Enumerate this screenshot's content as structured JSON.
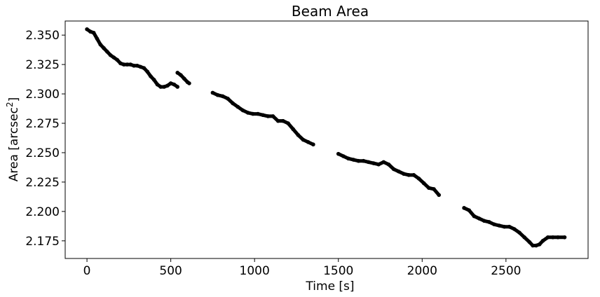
{
  "chart_data": {
    "type": "scatter",
    "title": "Beam Area",
    "xlabel": "Time [s]",
    "ylabel_prefix": "Area [arcsec",
    "ylabel_sup": "2",
    "ylabel_suffix": "]",
    "xlim": [
      -130,
      2990
    ],
    "ylim": [
      2.16,
      2.362
    ],
    "x_ticks": [
      0,
      500,
      1000,
      1500,
      2000,
      2500
    ],
    "x_tick_labels": [
      "0",
      "500",
      "1000",
      "1500",
      "2000",
      "2500"
    ],
    "y_ticks": [
      2.175,
      2.2,
      2.225,
      2.25,
      2.275,
      2.3,
      2.325,
      2.35
    ],
    "y_tick_labels": [
      "2.175",
      "2.200",
      "2.225",
      "2.250",
      "2.275",
      "2.300",
      "2.325",
      "2.350"
    ],
    "grid": false,
    "marker_color": "#000000",
    "segments": [
      {
        "x": [
          0,
          20,
          40,
          60,
          80,
          100,
          120,
          140,
          160,
          180,
          200,
          220,
          240,
          260,
          280,
          300,
          320,
          340,
          360,
          380,
          400,
          420,
          440,
          460,
          480,
          500,
          520,
          540
        ],
        "y": [
          2.355,
          2.353,
          2.352,
          2.347,
          2.342,
          2.339,
          2.336,
          2.333,
          2.331,
          2.329,
          2.326,
          2.325,
          2.325,
          2.325,
          2.324,
          2.324,
          2.323,
          2.322,
          2.319,
          2.315,
          2.312,
          2.308,
          2.306,
          2.306,
          2.307,
          2.309,
          2.308,
          2.306
        ]
      },
      {
        "x": [
          540,
          560,
          580,
          600,
          610
        ],
        "y": [
          2.318,
          2.316,
          2.313,
          2.31,
          2.309
        ]
      },
      {
        "x": [
          750,
          780,
          810,
          840,
          870,
          900,
          930,
          960,
          990,
          1020,
          1050,
          1080,
          1110,
          1140,
          1170,
          1200,
          1230,
          1260,
          1290,
          1320,
          1350
        ],
        "y": [
          2.301,
          2.299,
          2.298,
          2.296,
          2.292,
          2.289,
          2.286,
          2.284,
          2.283,
          2.283,
          2.282,
          2.281,
          2.281,
          2.277,
          2.277,
          2.275,
          2.27,
          2.265,
          2.261,
          2.259,
          2.257
        ]
      },
      {
        "x": [
          1500,
          1530,
          1560,
          1590,
          1620,
          1650,
          1680,
          1710,
          1740,
          1770,
          1800,
          1830,
          1860,
          1890,
          1920,
          1950,
          1980,
          2010,
          2040,
          2070,
          2100
        ],
        "y": [
          2.249,
          2.247,
          2.245,
          2.244,
          2.243,
          2.243,
          2.242,
          2.241,
          2.24,
          2.242,
          2.24,
          2.236,
          2.234,
          2.232,
          2.231,
          2.231,
          2.228,
          2.224,
          2.22,
          2.219,
          2.214
        ]
      },
      {
        "x": [
          2250,
          2280,
          2310,
          2340,
          2370,
          2400,
          2430,
          2460,
          2490,
          2520,
          2550,
          2580,
          2610,
          2640,
          2660,
          2680,
          2700,
          2720,
          2750,
          2780,
          2810,
          2850
        ],
        "y": [
          2.203,
          2.201,
          2.196,
          2.194,
          2.192,
          2.191,
          2.189,
          2.188,
          2.187,
          2.187,
          2.185,
          2.182,
          2.178,
          2.174,
          2.171,
          2.171,
          2.172,
          2.175,
          2.178,
          2.178,
          2.178,
          2.178
        ]
      }
    ]
  }
}
